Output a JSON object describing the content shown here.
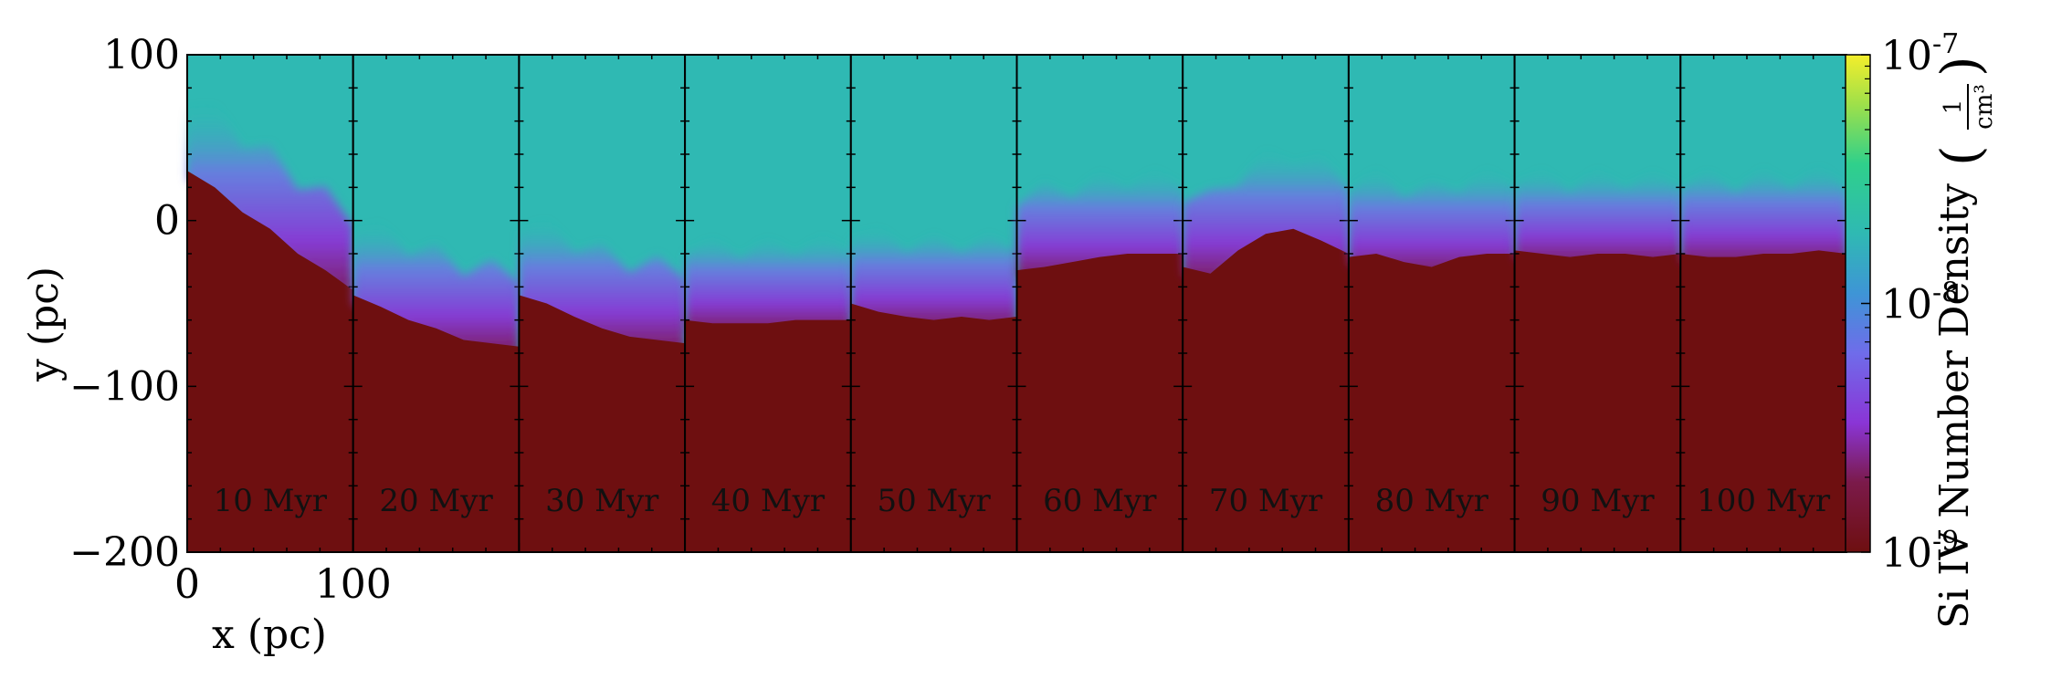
{
  "chart_data": {
    "type": "heatmap",
    "title": "",
    "xlabel": "x  (pc)",
    "ylabel": "y  (pc)",
    "xlim": [
      0,
      100
    ],
    "ylim": [
      -200,
      100
    ],
    "x_ticks": [
      "0",
      "100"
    ],
    "y_ticks": [
      "100",
      "0",
      "−100",
      "−200"
    ],
    "y_tick_values": [
      100,
      0,
      -100,
      -200
    ],
    "panels": [
      {
        "label": "10 Myr",
        "front_y": [
          30,
          20,
          5,
          -5,
          -20,
          -30,
          -42
        ]
      },
      {
        "label": "20 Myr",
        "front_y": [
          -45,
          -52,
          -60,
          -65,
          -72,
          -74,
          -76
        ]
      },
      {
        "label": "30 Myr",
        "front_y": [
          -45,
          -50,
          -58,
          -65,
          -70,
          -72,
          -74
        ]
      },
      {
        "label": "40 Myr",
        "front_y": [
          -60,
          -62,
          -62,
          -62,
          -60,
          -60,
          -60
        ]
      },
      {
        "label": "50 Myr",
        "front_y": [
          -50,
          -55,
          -58,
          -60,
          -58,
          -60,
          -58
        ]
      },
      {
        "label": "60 Myr",
        "front_y": [
          -30,
          -28,
          -25,
          -22,
          -20,
          -20,
          -20
        ]
      },
      {
        "label": "70 Myr",
        "front_y": [
          -28,
          -32,
          -18,
          -8,
          -5,
          -12,
          -20
        ]
      },
      {
        "label": "80 Myr",
        "front_y": [
          -22,
          -20,
          -25,
          -28,
          -22,
          -20,
          -20
        ]
      },
      {
        "label": "90 Myr",
        "front_y": [
          -18,
          -20,
          -22,
          -20,
          -20,
          -22,
          -20
        ]
      },
      {
        "label": "100 Myr",
        "front_y": [
          -20,
          -22,
          -22,
          -20,
          -20,
          -18,
          -20
        ]
      }
    ],
    "colorbar": {
      "label": "Si IV Number Density",
      "unit_numerator": "1",
      "unit_denominator": "cm³",
      "scale": "log",
      "range": [
        1e-09,
        1e-07
      ],
      "ticks": [
        {
          "base": "10",
          "exp": "-7"
        },
        {
          "base": "10",
          "exp": "-8"
        },
        {
          "base": "10",
          "exp": "-9"
        }
      ],
      "colormap": "viridis-like (dark red at low end)"
    },
    "colors": {
      "low": "#6e0f10",
      "transition_purple": "#8a35d6",
      "transition_blue": "#6f74e6",
      "background_teal": "#2fb9b3",
      "high": "#f4ee2b"
    }
  }
}
